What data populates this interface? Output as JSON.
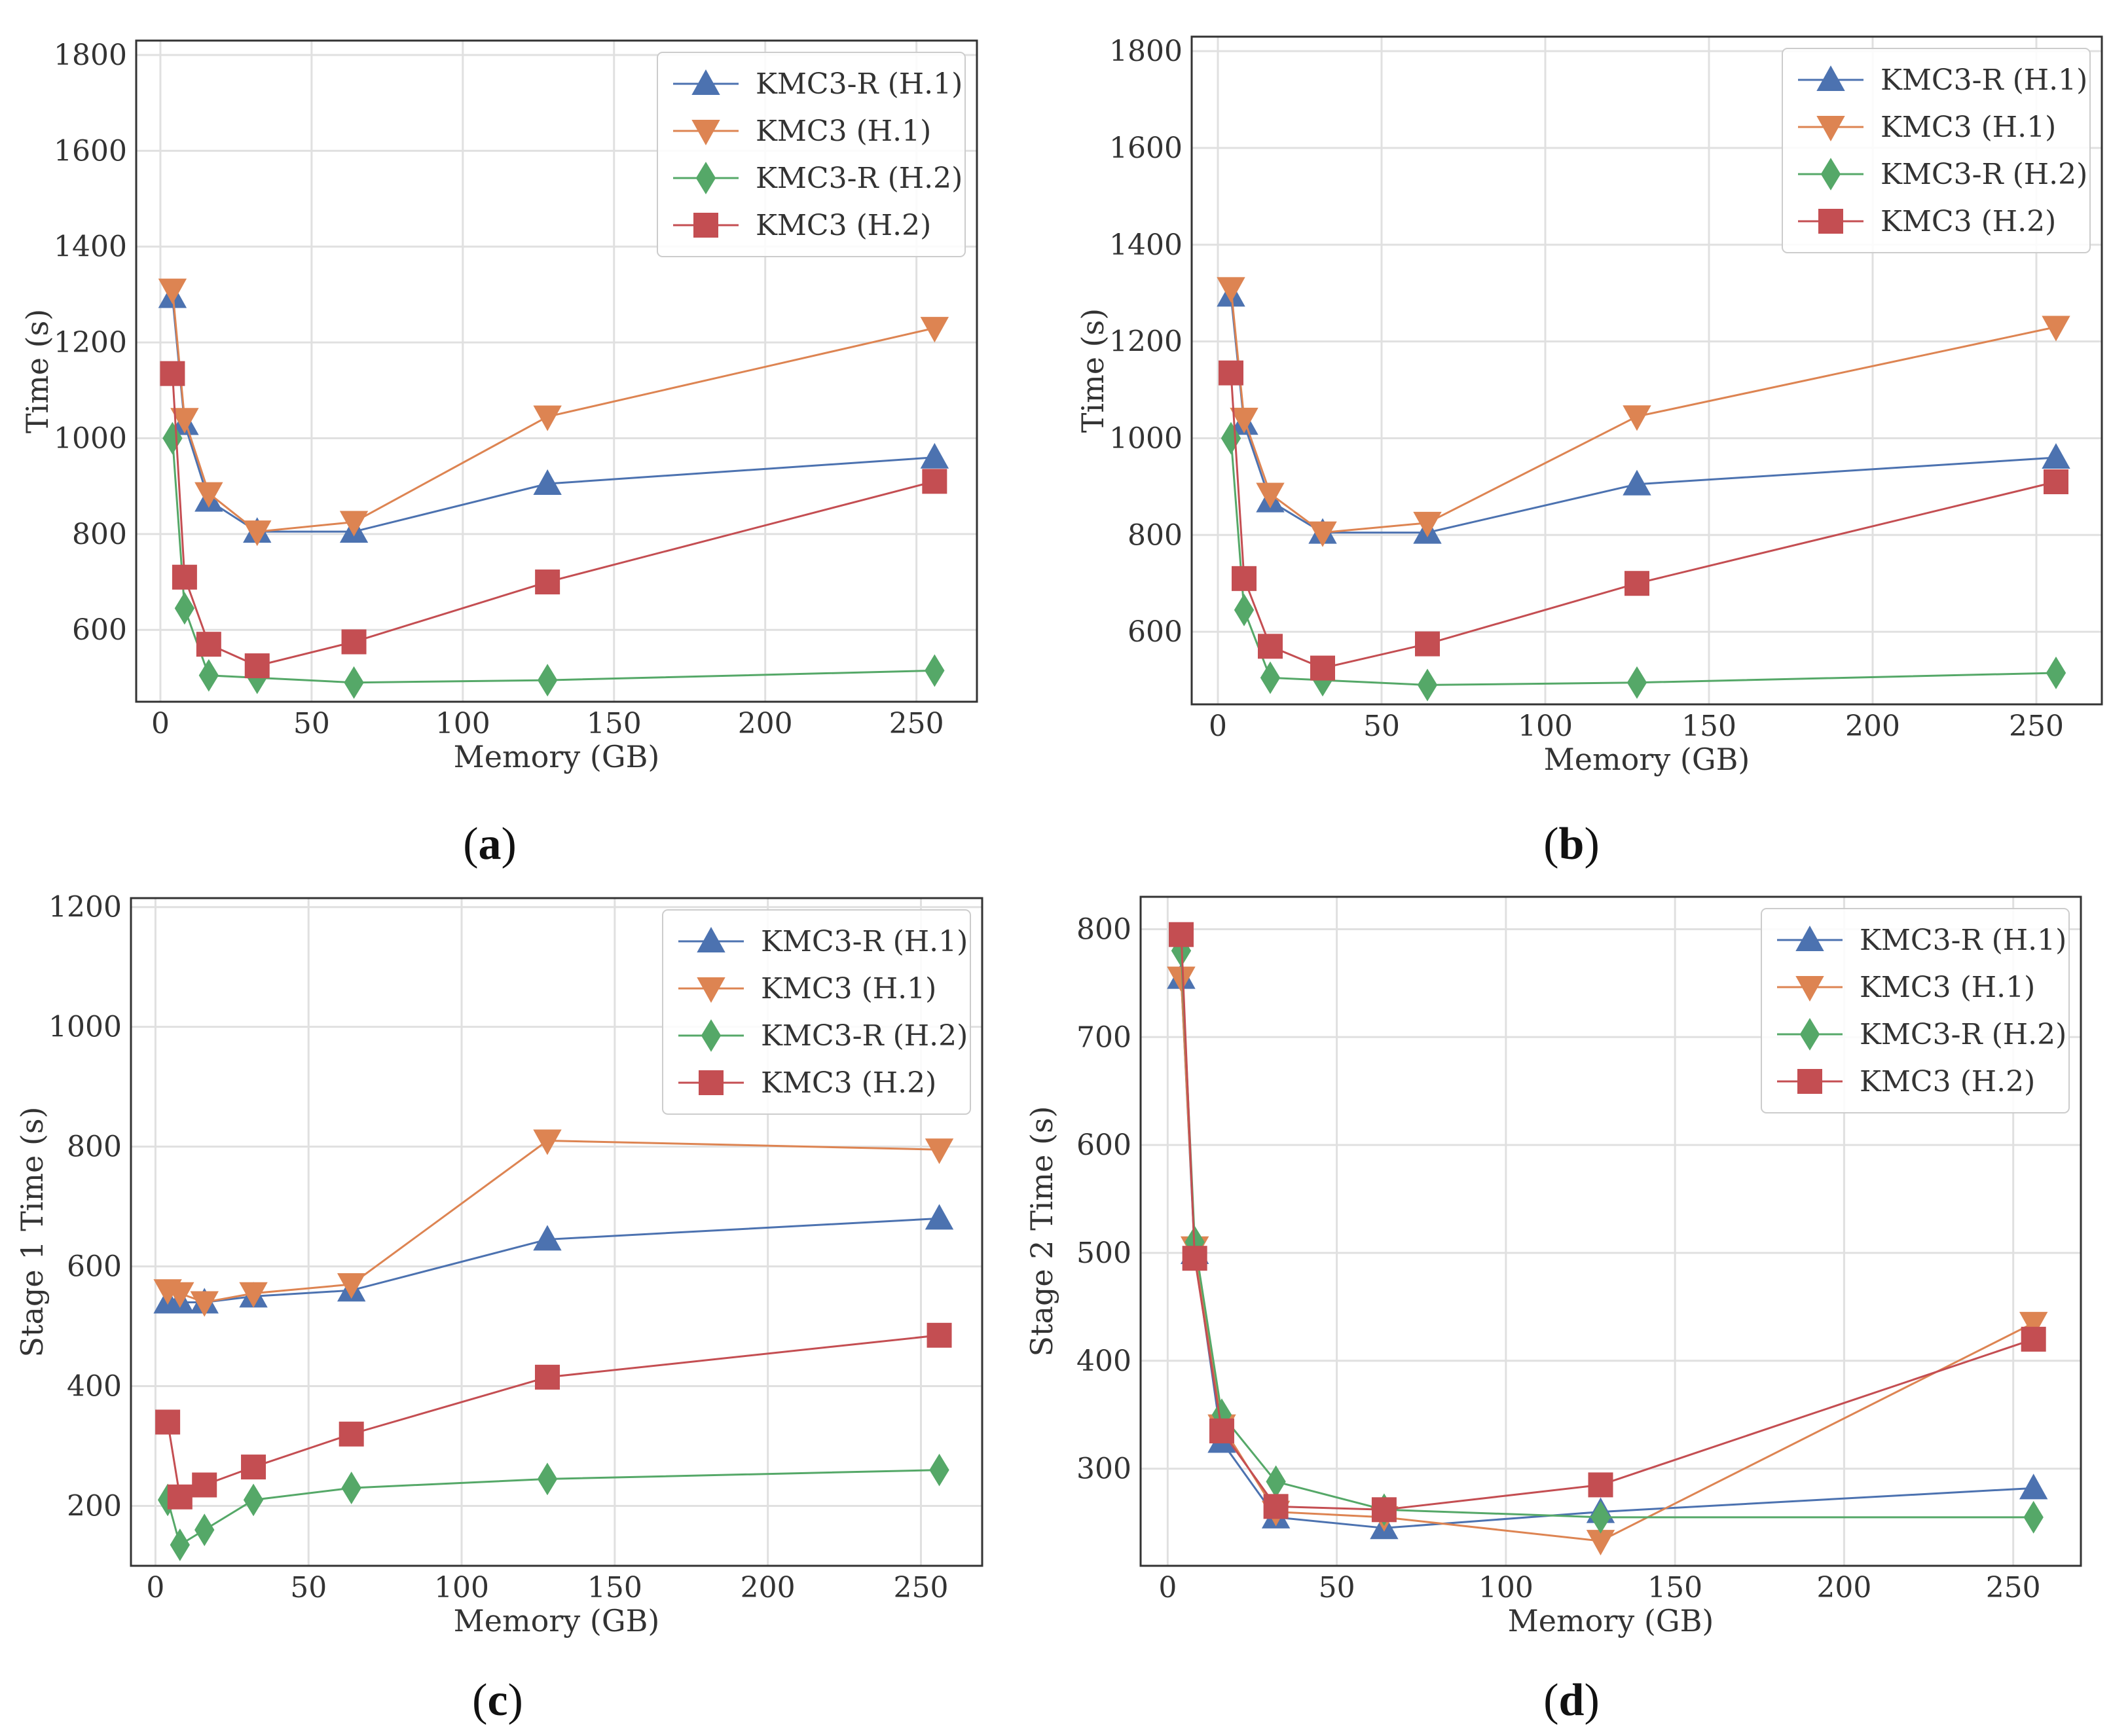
{
  "colors": {
    "kmc3r_h1": "#4c72b0",
    "kmc3_h1": "#dd8452",
    "kmc3r_h2": "#55a868",
    "kmc3_h2": "#c44e52",
    "grid": "#e0e0e0",
    "frame": "#333333"
  },
  "chart_data": [
    {
      "id": "a",
      "type": "line",
      "panel_label": "a",
      "xlabel": "Memory (GB)",
      "ylabel": "Time (s)",
      "xlim": [
        -8,
        270
      ],
      "ylim": [
        450,
        1830
      ],
      "xticks": [
        0,
        50,
        100,
        150,
        200,
        250
      ],
      "yticks": [
        600,
        800,
        1000,
        1200,
        1400,
        1600,
        1800
      ],
      "legend_position": "top-right",
      "x": [
        4,
        8,
        16,
        32,
        64,
        128,
        256
      ],
      "series": [
        {
          "name": "KMC3-R (H.1)",
          "marker": "triangle-up",
          "color_key": "kmc3r_h1",
          "values": [
            1295,
            1030,
            870,
            805,
            805,
            905,
            960
          ]
        },
        {
          "name": "KMC3 (H.1)",
          "marker": "triangle-down",
          "color_key": "kmc3_h1",
          "values": [
            1310,
            1040,
            885,
            805,
            825,
            1045,
            1230
          ]
        },
        {
          "name": "KMC3-R (H.2)",
          "marker": "diamond",
          "color_key": "kmc3r_h2",
          "values": [
            1000,
            645,
            505,
            500,
            490,
            495,
            515
          ]
        },
        {
          "name": "KMC3 (H.2)",
          "marker": "square",
          "color_key": "kmc3_h2",
          "values": [
            1135,
            710,
            570,
            525,
            575,
            700,
            910
          ]
        }
      ]
    },
    {
      "id": "b",
      "type": "line",
      "panel_label": "b",
      "xlabel": "Memory (GB)",
      "ylabel": "Time (s)",
      "xlim": [
        -8,
        270
      ],
      "ylim": [
        450,
        1830
      ],
      "xticks": [
        0,
        50,
        100,
        150,
        200,
        250
      ],
      "yticks": [
        600,
        800,
        1000,
        1200,
        1400,
        1600,
        1800
      ],
      "legend_position": "top-right",
      "x": [
        4,
        8,
        16,
        32,
        64,
        128,
        256
      ],
      "series": [
        {
          "name": "KMC3-R (H.1)",
          "marker": "triangle-up",
          "color_key": "kmc3r_h1",
          "values": [
            1295,
            1030,
            870,
            805,
            805,
            905,
            960
          ]
        },
        {
          "name": "KMC3 (H.1)",
          "marker": "triangle-down",
          "color_key": "kmc3_h1",
          "values": [
            1310,
            1040,
            885,
            805,
            825,
            1045,
            1230
          ]
        },
        {
          "name": "KMC3-R (H.2)",
          "marker": "diamond",
          "color_key": "kmc3r_h2",
          "values": [
            1000,
            645,
            505,
            500,
            490,
            495,
            515
          ]
        },
        {
          "name": "KMC3 (H.2)",
          "marker": "square",
          "color_key": "kmc3_h2",
          "values": [
            1135,
            710,
            570,
            525,
            575,
            700,
            910
          ]
        }
      ]
    },
    {
      "id": "c",
      "type": "line",
      "panel_label": "c",
      "xlabel": "Memory (GB)",
      "ylabel": "Stage 1 Time (s)",
      "xlim": [
        -8,
        270
      ],
      "ylim": [
        100,
        1215
      ],
      "xticks": [
        0,
        50,
        100,
        150,
        200,
        250
      ],
      "yticks": [
        200,
        400,
        600,
        800,
        1000,
        1200
      ],
      "legend_position": "top-right",
      "x": [
        4,
        8,
        16,
        32,
        64,
        128,
        256
      ],
      "series": [
        {
          "name": "KMC3-R (H.1)",
          "marker": "triangle-up",
          "color_key": "kmc3r_h1",
          "values": [
            540,
            540,
            540,
            550,
            560,
            645,
            680
          ]
        },
        {
          "name": "KMC3 (H.1)",
          "marker": "triangle-down",
          "color_key": "kmc3_h1",
          "values": [
            560,
            555,
            540,
            555,
            570,
            810,
            795
          ]
        },
        {
          "name": "KMC3-R (H.2)",
          "marker": "diamond",
          "color_key": "kmc3r_h2",
          "values": [
            210,
            135,
            160,
            210,
            230,
            245,
            260
          ]
        },
        {
          "name": "KMC3 (H.2)",
          "marker": "square",
          "color_key": "kmc3_h2",
          "values": [
            340,
            215,
            235,
            265,
            320,
            415,
            485
          ]
        }
      ]
    },
    {
      "id": "d",
      "type": "line",
      "panel_label": "d",
      "xlabel": "Memory (GB)",
      "ylabel": "Stage 2 Time (s)",
      "xlim": [
        -8,
        270
      ],
      "ylim": [
        210,
        830
      ],
      "xticks": [
        0,
        50,
        100,
        150,
        200,
        250
      ],
      "yticks": [
        300,
        400,
        500,
        600,
        700,
        800
      ],
      "legend_position": "top-right",
      "x": [
        4,
        8,
        16,
        32,
        64,
        128,
        256
      ],
      "series": [
        {
          "name": "KMC3-R (H.1)",
          "marker": "triangle-up",
          "color_key": "kmc3r_h1",
          "values": [
            755,
            500,
            325,
            255,
            245,
            260,
            282
          ]
        },
        {
          "name": "KMC3 (H.1)",
          "marker": "triangle-down",
          "color_key": "kmc3_h1",
          "values": [
            755,
            505,
            340,
            260,
            255,
            233,
            435
          ]
        },
        {
          "name": "KMC3-R (H.2)",
          "marker": "diamond",
          "color_key": "kmc3r_h2",
          "values": [
            780,
            510,
            350,
            288,
            262,
            255,
            255
          ]
        },
        {
          "name": "KMC3 (H.2)",
          "marker": "square",
          "color_key": "kmc3_h2",
          "values": [
            795,
            495,
            335,
            265,
            262,
            285,
            420
          ]
        }
      ]
    }
  ]
}
